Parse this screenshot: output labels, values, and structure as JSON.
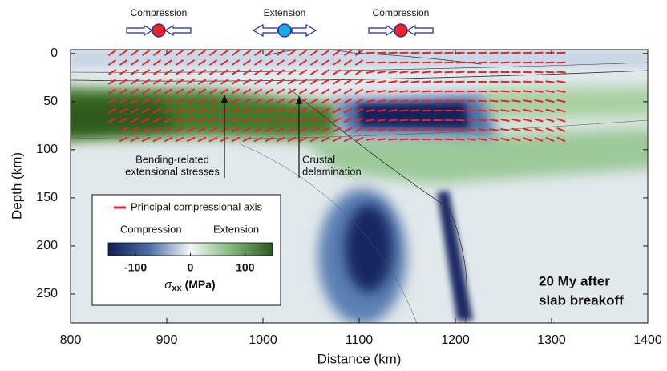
{
  "chart_data": {
    "type": "heatmap",
    "xlabel": "Distance (km)",
    "ylabel": "Depth (km)",
    "xlim": [
      800,
      1400
    ],
    "xticks": [
      800,
      900,
      1000,
      1100,
      1200,
      1300,
      1400
    ],
    "ylim": [
      -4,
      280
    ],
    "yticks": [
      0,
      50,
      100,
      150,
      200,
      250
    ],
    "y_inverted": true,
    "stress_regimes": [
      "Compression",
      "Extension",
      "Compression"
    ],
    "annotations": [
      [
        "Bending-related",
        "extensional stresses"
      ],
      [
        "Crustal",
        "delamination"
      ],
      [
        "20 My after",
        "slab breakoff"
      ]
    ],
    "legend": {
      "label": "Principal compressional axis",
      "color": "#e8232a"
    },
    "colorbar": {
      "left_label": "Compression",
      "right_label": "Extension",
      "lim": [
        -150,
        150
      ],
      "ticks": [
        -100,
        0,
        100
      ],
      "symbol": "σ",
      "subscript": "xx",
      "unit": "(MPa)"
    }
  }
}
